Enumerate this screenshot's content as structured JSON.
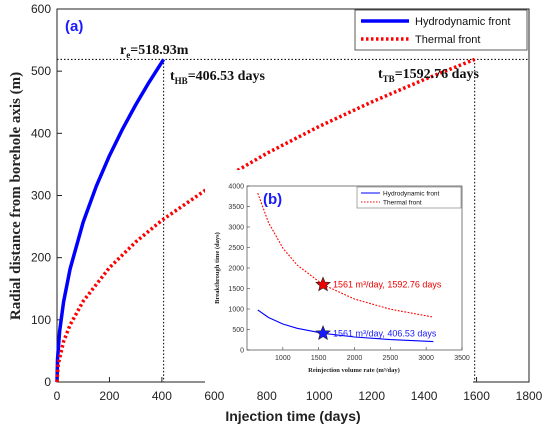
{
  "chart_data": [
    {
      "type": "line",
      "panel_label": "(a)",
      "xlabel": "Injection time (days)",
      "ylabel": "Radial distance from borehole axis (m)",
      "xlim": [
        0,
        1800
      ],
      "ylim": [
        0,
        600
      ],
      "xticks": [
        0,
        200,
        400,
        600,
        800,
        1000,
        1200,
        1400,
        1600,
        1800
      ],
      "yticks": [
        0,
        100,
        200,
        300,
        400,
        500,
        600
      ],
      "legend_position": "top-right",
      "series": [
        {
          "name": "Hydrodynamic front",
          "color": "#0000ff",
          "style": "solid",
          "x": [
            0,
            2,
            10,
            25,
            50,
            100,
            150,
            200,
            250,
            300,
            350,
            406.53
          ],
          "y": [
            0,
            36.4,
            81.4,
            128.7,
            182.0,
            257.4,
            315.2,
            364.0,
            406.9,
            445.8,
            481.5,
            518.93
          ]
        },
        {
          "name": "Thermal front",
          "color": "#ff0000",
          "style": "dotted",
          "x": [
            0,
            5,
            25,
            50,
            100,
            200,
            300,
            400,
            600,
            800,
            1000,
            1200,
            1400,
            1592.76
          ],
          "y": [
            0,
            29.1,
            65.0,
            91.9,
            130.0,
            183.9,
            225.2,
            260.1,
            318.5,
            367.8,
            411.2,
            450.4,
            486.5,
            518.93
          ]
        }
      ],
      "annotations": {
        "re_main": "r",
        "re_sub": "e",
        "re_val": "=518.93m",
        "thb_main": "t",
        "thb_sub": "HB",
        "thb_val": "=406.53 days",
        "ttb_main": "t",
        "ttb_sub": "TB",
        "ttb_val": "=1592.76 days"
      },
      "reference_lines": {
        "re": 518.93,
        "t_hb": 406.53,
        "t_tb": 1592.76
      }
    },
    {
      "type": "line",
      "panel_label": "(b)",
      "xlabel": "Reinjection volume rate (m³/day)",
      "ylabel": "Breakthrough time (days)",
      "xlim": [
        500,
        3500
      ],
      "ylim": [
        0,
        4000
      ],
      "xticks": [
        1000,
        1500,
        2000,
        2500,
        3000,
        3500
      ],
      "yticks": [
        0,
        500,
        1000,
        1500,
        2000,
        2500,
        3000,
        3500,
        4000
      ],
      "legend_position": "top-right",
      "series": [
        {
          "name": "Hydrodynamic front",
          "color": "#0000ff",
          "style": "solid",
          "x": [
            650,
            800,
            1000,
            1200,
            1561,
            2000,
            2500,
            3100
          ],
          "y": [
            976,
            793,
            634,
            529,
            406.53,
            317,
            254,
            205
          ]
        },
        {
          "name": "Thermal front",
          "color": "#ff0000",
          "style": "dotted",
          "x": [
            650,
            800,
            1000,
            1200,
            1561,
            2000,
            2500,
            3100
          ],
          "y": [
            3825,
            3108,
            2486,
            2072,
            1592.76,
            1243,
            995,
            802
          ]
        }
      ],
      "markers": [
        {
          "x": 1561,
          "y": 406.53,
          "color": "#1a1aff",
          "label": "1561 m³/day, 406.53 days"
        },
        {
          "x": 1561,
          "y": 1592.76,
          "color": "#ee0000",
          "label": "1561 m³/day, 1592.76 days"
        }
      ]
    }
  ]
}
